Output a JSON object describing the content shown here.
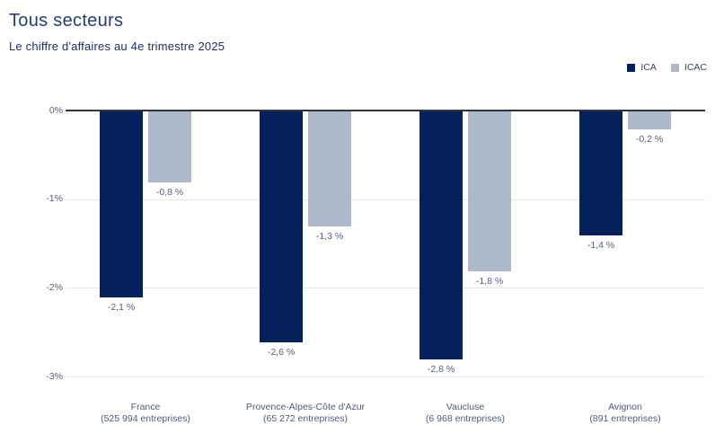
{
  "title": "Tous secteurs",
  "subtitle": "Le chiffre d'affaires au 4e trimestre 2025",
  "colors": {
    "ica": "#04215E",
    "icac": "#ADB8CB",
    "title_text": "#233E78",
    "axis_text": "#51607F",
    "zero_axis_line": "#32343C",
    "gridline": "#E7E7E7",
    "background": "#FFFFFF"
  },
  "legend": {
    "items": [
      "ICA",
      "ICAC"
    ],
    "position": "top-right"
  },
  "chart_data": {
    "type": "bar",
    "title": "Tous secteurs",
    "subtitle": "Le chiffre d'affaires au 4e trimestre 2025",
    "categories": [
      "France",
      "Provence-Alpes-Côte d'Azur",
      "Vaucluse",
      "Avignon"
    ],
    "category_sublabels": [
      "(525 994 entreprises)",
      "(65 272 entreprises)",
      "(6 968 entreprises)",
      "(891 entreprises)"
    ],
    "series": [
      {
        "name": "ICA",
        "color": "#04215E",
        "values": [
          -2.1,
          -2.6,
          -2.8,
          -1.4
        ],
        "labels": [
          "-2,1 %",
          "-2,6 %",
          "-2,8 %",
          "-1,4 %"
        ]
      },
      {
        "name": "ICAC",
        "color": "#ADB8CB",
        "values": [
          -0.8,
          -1.3,
          -1.8,
          -0.2
        ],
        "labels": [
          "-0,8 %",
          "-1,3 %",
          "-1,8 %",
          "-0,2 %"
        ]
      }
    ],
    "ylim": [
      -3,
      0
    ],
    "yticks": [
      {
        "value": 0,
        "label": "0%"
      },
      {
        "value": -1,
        "label": "-1%"
      },
      {
        "value": -2,
        "label": "-2%"
      },
      {
        "value": -3,
        "label": "-3%"
      }
    ],
    "grid": true,
    "legend_position": "top-right",
    "xlabel": "",
    "ylabel": ""
  }
}
